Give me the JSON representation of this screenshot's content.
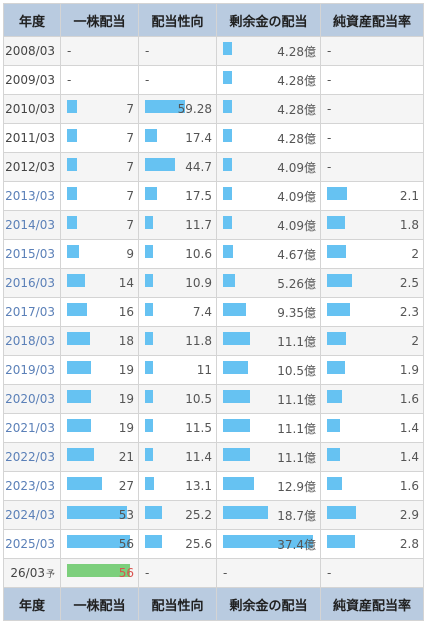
{
  "headers": [
    "年度",
    "一株配当",
    "配当性向",
    "剰余金の配当",
    "純資産配当率"
  ],
  "future_mark": "予",
  "colors": {
    "bar": "#66c2f2",
    "forecast_bar": "#7ccf7c",
    "header_bg": "#b9cbe0",
    "link_year": "#5b80b8"
  },
  "rows": [
    {
      "year": "2008/03",
      "link": false,
      "dividend": "-",
      "dividend_bar": 0,
      "payout": "-",
      "payout_bar": 0,
      "retained": "4.28億",
      "retained_bar": 0.1,
      "doe": "-",
      "doe_bar": 0
    },
    {
      "year": "2009/03",
      "link": false,
      "dividend": "-",
      "dividend_bar": 0,
      "payout": "-",
      "payout_bar": 0,
      "retained": "4.28億",
      "retained_bar": 0.1,
      "doe": "-",
      "doe_bar": 0
    },
    {
      "year": "2010/03",
      "link": false,
      "dividend": "7",
      "dividend_bar": 0.16,
      "payout": "59.28",
      "payout_bar": 0.62,
      "retained": "4.28億",
      "retained_bar": 0.1,
      "doe": "-",
      "doe_bar": 0
    },
    {
      "year": "2011/03",
      "link": false,
      "dividend": "7",
      "dividend_bar": 0.16,
      "payout": "17.4",
      "payout_bar": 0.18,
      "retained": "4.28億",
      "retained_bar": 0.1,
      "doe": "-",
      "doe_bar": 0
    },
    {
      "year": "2012/03",
      "link": false,
      "dividend": "7",
      "dividend_bar": 0.16,
      "payout": "44.7",
      "payout_bar": 0.47,
      "retained": "4.09億",
      "retained_bar": 0.1,
      "doe": "-",
      "doe_bar": 0
    },
    {
      "year": "2013/03",
      "link": true,
      "dividend": "7",
      "dividend_bar": 0.16,
      "payout": "17.5",
      "payout_bar": 0.18,
      "retained": "4.09億",
      "retained_bar": 0.1,
      "doe": "2.1",
      "doe_bar": 0.23
    },
    {
      "year": "2014/03",
      "link": true,
      "dividend": "7",
      "dividend_bar": 0.16,
      "payout": "11.7",
      "payout_bar": 0.12,
      "retained": "4.09億",
      "retained_bar": 0.1,
      "doe": "1.8",
      "doe_bar": 0.2
    },
    {
      "year": "2015/03",
      "link": true,
      "dividend": "9",
      "dividend_bar": 0.18,
      "payout": "10.6",
      "payout_bar": 0.11,
      "retained": "4.67億",
      "retained_bar": 0.11,
      "doe": "2",
      "doe_bar": 0.22
    },
    {
      "year": "2016/03",
      "link": true,
      "dividend": "14",
      "dividend_bar": 0.28,
      "payout": "10.9",
      "payout_bar": 0.11,
      "retained": "5.26億",
      "retained_bar": 0.13,
      "doe": "2.5",
      "doe_bar": 0.28
    },
    {
      "year": "2017/03",
      "link": true,
      "dividend": "16",
      "dividend_bar": 0.32,
      "payout": "7.4",
      "payout_bar": 0.08,
      "retained": "9.35億",
      "retained_bar": 0.25,
      "doe": "2.3",
      "doe_bar": 0.26
    },
    {
      "year": "2018/03",
      "link": true,
      "dividend": "18",
      "dividend_bar": 0.36,
      "payout": "11.8",
      "payout_bar": 0.12,
      "retained": "11.1億",
      "retained_bar": 0.3,
      "doe": "2",
      "doe_bar": 0.22
    },
    {
      "year": "2019/03",
      "link": true,
      "dividend": "19",
      "dividend_bar": 0.38,
      "payout": "11",
      "payout_bar": 0.11,
      "retained": "10.5億",
      "retained_bar": 0.28,
      "doe": "1.9",
      "doe_bar": 0.21
    },
    {
      "year": "2020/03",
      "link": true,
      "dividend": "19",
      "dividend_bar": 0.38,
      "payout": "10.5",
      "payout_bar": 0.11,
      "retained": "11.1億",
      "retained_bar": 0.3,
      "doe": "1.6",
      "doe_bar": 0.17
    },
    {
      "year": "2021/03",
      "link": true,
      "dividend": "19",
      "dividend_bar": 0.38,
      "payout": "11.5",
      "payout_bar": 0.12,
      "retained": "11.1億",
      "retained_bar": 0.3,
      "doe": "1.4",
      "doe_bar": 0.15
    },
    {
      "year": "2022/03",
      "link": true,
      "dividend": "21",
      "dividend_bar": 0.42,
      "payout": "11.4",
      "payout_bar": 0.12,
      "retained": "11.1億",
      "retained_bar": 0.3,
      "doe": "1.4",
      "doe_bar": 0.15
    },
    {
      "year": "2023/03",
      "link": true,
      "dividend": "27",
      "dividend_bar": 0.54,
      "payout": "13.1",
      "payout_bar": 0.14,
      "retained": "12.9億",
      "retained_bar": 0.35,
      "doe": "1.6",
      "doe_bar": 0.17
    },
    {
      "year": "2024/03",
      "link": true,
      "dividend": "53",
      "dividend_bar": 0.94,
      "payout": "25.2",
      "payout_bar": 0.27,
      "retained": "18.7億",
      "retained_bar": 0.5,
      "doe": "2.9",
      "doe_bar": 0.33
    },
    {
      "year": "2025/03",
      "link": true,
      "dividend": "56",
      "dividend_bar": 0.99,
      "payout": "25.6",
      "payout_bar": 0.27,
      "retained": "37.4億",
      "retained_bar": 1.0,
      "doe": "2.8",
      "doe_bar": 0.32
    },
    {
      "year": "26/03",
      "link": false,
      "forecast": true,
      "dividend": "56",
      "dividend_bar": 0.99,
      "payout": "-",
      "payout_bar": 0,
      "retained": "-",
      "retained_bar": 0,
      "doe": "-",
      "doe_bar": 0
    }
  ]
}
